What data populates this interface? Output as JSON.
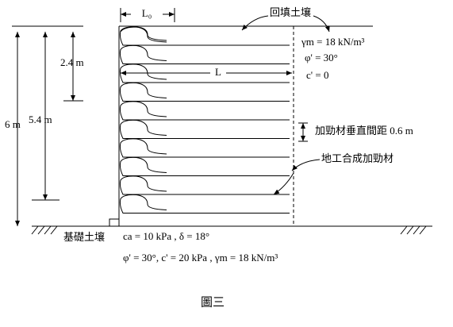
{
  "figure": {
    "labels": {
      "l0": "L₀",
      "backfill": "回填土壤",
      "gamma": "γm = 18 kN/m³",
      "phi": "φ' = 30°",
      "c": "c' = 0",
      "l": "L",
      "spacing": "加勁材垂直間距 0.6 m",
      "geosynthetic": "地工合成加勁材",
      "h24": "2.4 m",
      "h54": "5.4 m",
      "h6": "6 m",
      "foundation": "基礎土壤",
      "foundation_line1": "ca = 10 kPa , δ = 18°",
      "foundation_line2": "φ' = 30°, c' = 20 kPa , γm = 18 kN/m³"
    },
    "caption": "圖三"
  }
}
